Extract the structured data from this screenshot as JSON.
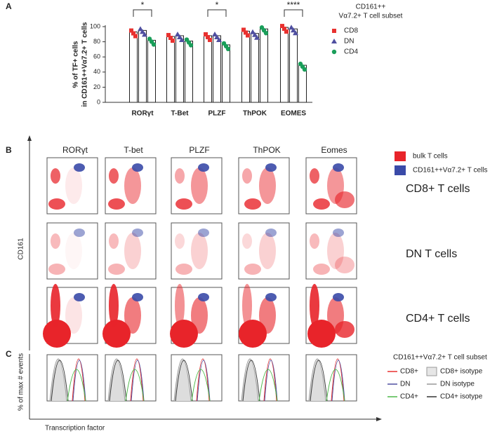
{
  "panel_letters": [
    "A",
    "B",
    "C"
  ],
  "chart_data": {
    "type": "bar",
    "y_label": [
      "% of TF+ cells",
      "in CD161++Vα7.2+ T cells"
    ],
    "categories": [
      "RORγt",
      "T-Bet",
      "PLZF",
      "ThPOK",
      "EOMES"
    ],
    "series": [
      {
        "name": "CD8",
        "color": "#e8312f",
        "values": [
          93,
          87,
          88,
          94,
          99
        ]
      },
      {
        "name": "DN",
        "color": "#4f4fa0",
        "values": [
          95,
          88,
          88,
          91,
          97
        ]
      },
      {
        "name": "CD4",
        "color": "#1a9e5a",
        "values": [
          82,
          81,
          76,
          97,
          49
        ]
      }
    ],
    "ylim": [
      0,
      100
    ],
    "yticks": [
      0,
      20,
      40,
      60,
      80,
      100
    ],
    "legend_title": [
      "CD161++",
      "Vα7.2+ T cell subset"
    ],
    "annotations": [
      "*",
      "*",
      "****"
    ]
  },
  "flow": {
    "column_titles": [
      "RORγt",
      "T-bet",
      "PLZF",
      "ThPOK",
      "Eomes"
    ],
    "row_labels": [
      "CD8+ T cells",
      "DN T cells",
      "CD4+ T cells"
    ],
    "legend": [
      "bulk T cells",
      "CD161++Vα7.2+ T cells"
    ],
    "y_label": "CD161"
  },
  "histograms": {
    "y_label": "% of max # events",
    "x_label": "Transcription factor",
    "legend_title": "CD161++Vα7.2+ T cell subset",
    "legend": [
      "CD8+",
      "DN",
      "CD4+"
    ],
    "isotype_legend": [
      "CD8+ isotype",
      "DN  isotype",
      "CD4+ isotype"
    ]
  }
}
